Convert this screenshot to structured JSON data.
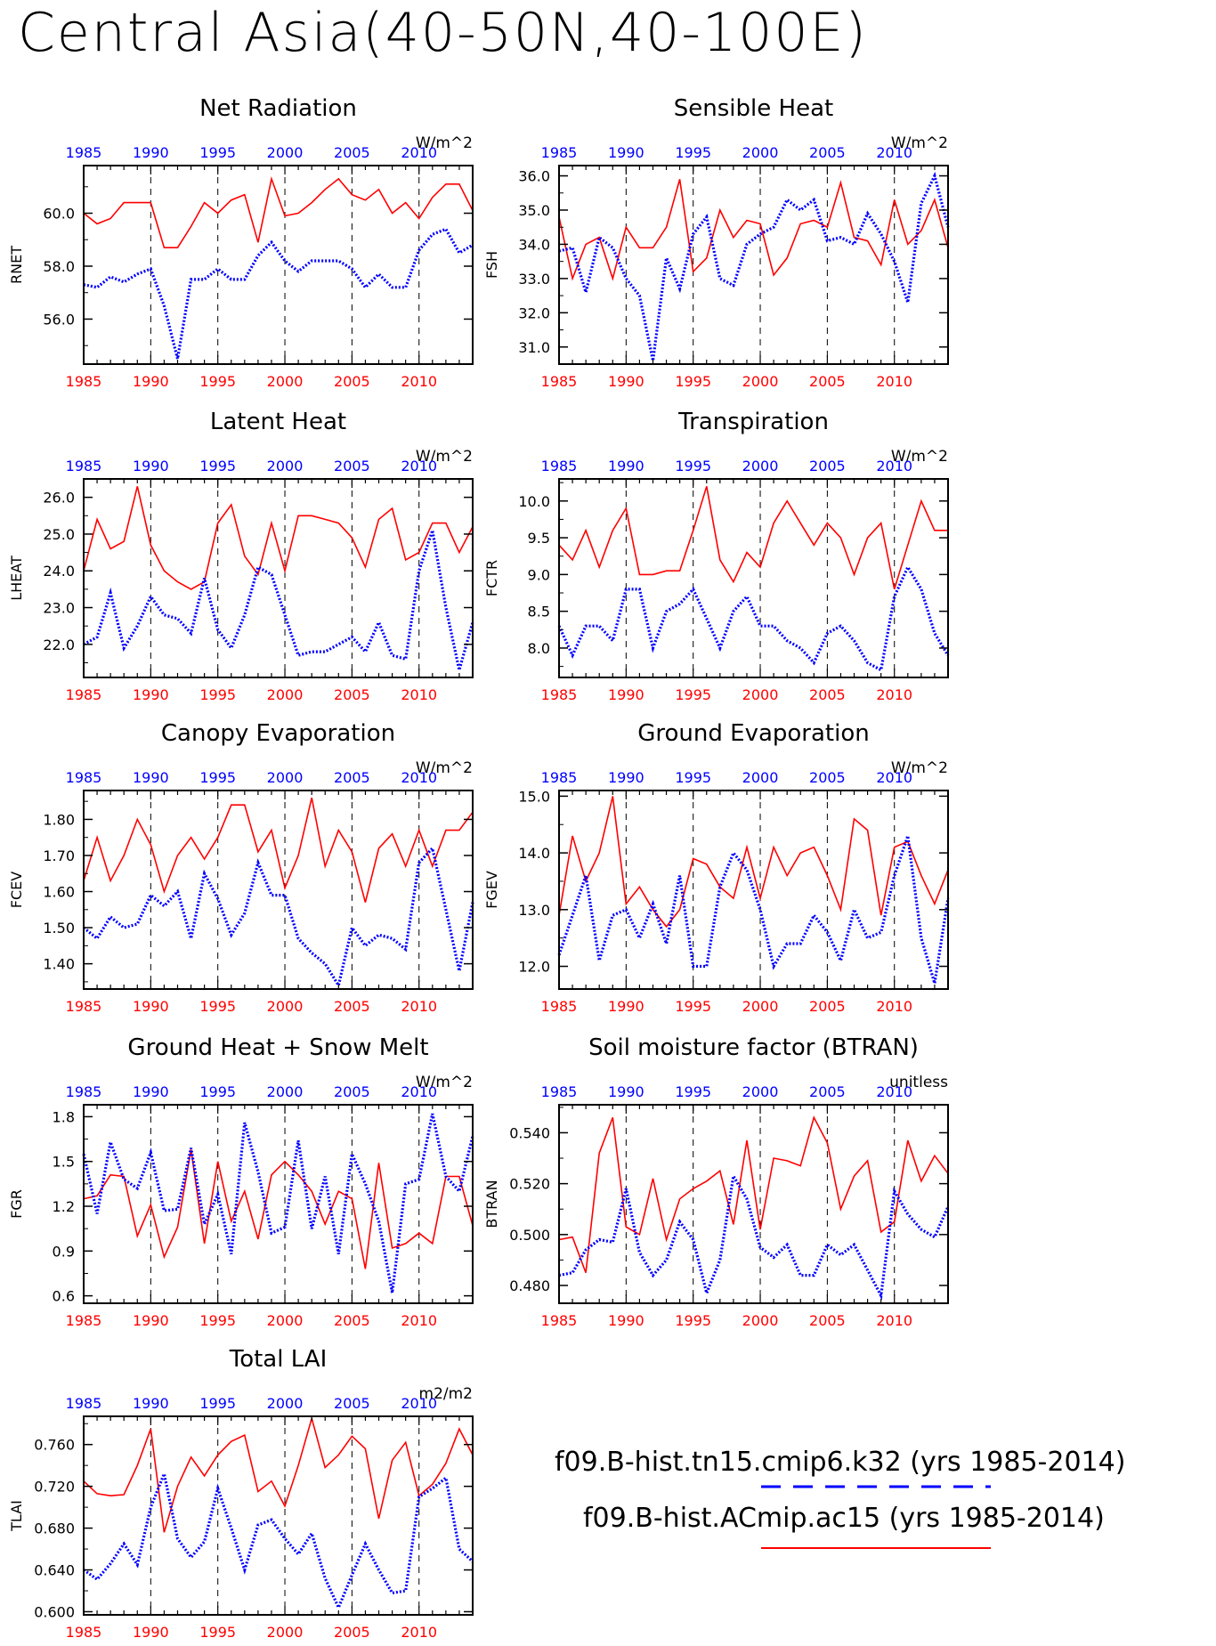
{
  "page_title": "Central Asia(40-50N,40-100E)",
  "colors": {
    "case1": "#0000ff",
    "case2": "#ff0000",
    "axis": "#000000"
  },
  "legend": {
    "case1": "f09.B-hist.tn15.cmip6.k32 (yrs 1985-2014)",
    "case2": "f09.B-hist.ACmip.ac15 (yrs 1985-2014)"
  },
  "x_axis": {
    "range": [
      1985,
      2014
    ],
    "ticks": [
      1985,
      1990,
      1995,
      2000,
      2005,
      2010
    ],
    "top_tick_labels": [
      "1985",
      "1990",
      "1995",
      "2000",
      "2005",
      "2010"
    ],
    "bottom_tick_labels": [
      "1985",
      "1990",
      "1995",
      "2000",
      "2005",
      "2010"
    ]
  },
  "chart_data": [
    {
      "type": "line",
      "title": "Net Radiation",
      "ylabel": "RNET",
      "units": "W/m^2",
      "ylim": [
        54.3,
        61.8
      ],
      "yticks": [
        56,
        58,
        60
      ],
      "ytick_labels": [
        "56.0",
        "58.0",
        "60.0"
      ],
      "x": [
        1985,
        1986,
        1987,
        1988,
        1989,
        1990,
        1991,
        1992,
        1993,
        1994,
        1995,
        1996,
        1997,
        1998,
        1999,
        2000,
        2001,
        2002,
        2003,
        2004,
        2005,
        2006,
        2007,
        2008,
        2009,
        2010,
        2011,
        2012,
        2013,
        2014
      ],
      "series": [
        {
          "values": [
            57.3,
            57.2,
            57.6,
            57.4,
            57.7,
            57.9,
            56.5,
            54.5,
            57.5,
            57.5,
            57.9,
            57.5,
            57.5,
            58.4,
            58.9,
            58.2,
            57.8,
            58.2,
            58.2,
            58.2,
            57.9,
            57.2,
            57.7,
            57.2,
            57.2,
            58.6,
            59.2,
            59.4,
            58.5,
            58.8
          ]
        },
        {
          "values": [
            60.0,
            59.6,
            59.8,
            60.4,
            60.4,
            60.4,
            58.7,
            58.7,
            59.5,
            60.4,
            60.0,
            60.5,
            60.7,
            58.9,
            61.3,
            59.9,
            60.0,
            60.4,
            60.9,
            61.3,
            60.7,
            60.5,
            60.9,
            60.0,
            60.4,
            59.8,
            60.6,
            61.1,
            61.1,
            60.1
          ]
        }
      ]
    },
    {
      "type": "line",
      "title": "Sensible Heat",
      "ylabel": "FSH",
      "units": "W/m^2",
      "ylim": [
        30.5,
        36.3
      ],
      "yticks": [
        31,
        32,
        33,
        34,
        35,
        36
      ],
      "ytick_labels": [
        "31.0",
        "32.0",
        "33.0",
        "34.0",
        "35.0",
        "36.0"
      ],
      "x": [
        1985,
        1986,
        1987,
        1988,
        1989,
        1990,
        1991,
        1992,
        1993,
        1994,
        1995,
        1996,
        1997,
        1998,
        1999,
        2000,
        2001,
        2002,
        2003,
        2004,
        2005,
        2006,
        2007,
        2008,
        2009,
        2010,
        2011,
        2012,
        2013,
        2014
      ],
      "series": [
        {
          "values": [
            33.8,
            33.9,
            32.6,
            34.2,
            33.9,
            33.0,
            32.5,
            30.6,
            33.6,
            32.7,
            34.3,
            34.8,
            33.0,
            32.8,
            34.0,
            34.3,
            34.5,
            35.3,
            35.0,
            35.3,
            34.1,
            34.2,
            34.0,
            34.9,
            34.3,
            33.5,
            32.3,
            35.2,
            36.0,
            34.5
          ]
        },
        {
          "values": [
            34.8,
            33.0,
            34.0,
            34.2,
            33.0,
            34.5,
            33.9,
            33.9,
            34.5,
            35.9,
            33.2,
            33.6,
            35.0,
            34.2,
            34.7,
            34.6,
            33.1,
            33.6,
            34.6,
            34.7,
            34.5,
            35.8,
            34.2,
            34.1,
            33.4,
            35.3,
            34.0,
            34.4,
            35.3,
            33.9
          ]
        }
      ]
    },
    {
      "type": "line",
      "title": "Latent Heat",
      "ylabel": "LHEAT",
      "units": "W/m^2",
      "ylim": [
        21.1,
        26.5
      ],
      "yticks": [
        22,
        23,
        24,
        25,
        26
      ],
      "ytick_labels": [
        "22.0",
        "23.0",
        "24.0",
        "25.0",
        "26.0"
      ],
      "x": [
        1985,
        1986,
        1987,
        1988,
        1989,
        1990,
        1991,
        1992,
        1993,
        1994,
        1995,
        1996,
        1997,
        1998,
        1999,
        2000,
        2001,
        2002,
        2003,
        2004,
        2005,
        2006,
        2007,
        2008,
        2009,
        2010,
        2011,
        2012,
        2013,
        2014
      ],
      "series": [
        {
          "values": [
            22.0,
            22.2,
            23.4,
            21.9,
            22.5,
            23.3,
            22.8,
            22.7,
            22.3,
            23.8,
            22.4,
            21.9,
            22.8,
            24.1,
            23.9,
            22.8,
            21.7,
            21.8,
            21.8,
            22.0,
            22.2,
            21.8,
            22.6,
            21.7,
            21.6,
            24.0,
            25.1,
            23.0,
            21.3,
            22.6
          ]
        },
        {
          "values": [
            24.0,
            25.4,
            24.6,
            24.8,
            26.3,
            24.7,
            24.0,
            23.7,
            23.5,
            23.7,
            25.3,
            25.8,
            24.4,
            23.9,
            25.3,
            24.0,
            25.5,
            25.5,
            25.4,
            25.3,
            24.9,
            24.1,
            25.4,
            25.7,
            24.3,
            24.5,
            25.3,
            25.3,
            24.5,
            25.2
          ]
        }
      ]
    },
    {
      "type": "line",
      "title": "Transpiration",
      "ylabel": "FCTR",
      "units": "W/m^2",
      "ylim": [
        7.6,
        10.3
      ],
      "yticks": [
        8,
        8.5,
        9,
        9.5,
        10
      ],
      "ytick_labels": [
        "8.0",
        "8.5",
        "9.0",
        "9.5",
        "10.0"
      ],
      "x": [
        1985,
        1986,
        1987,
        1988,
        1989,
        1990,
        1991,
        1992,
        1993,
        1994,
        1995,
        1996,
        1997,
        1998,
        1999,
        2000,
        2001,
        2002,
        2003,
        2004,
        2005,
        2006,
        2007,
        2008,
        2009,
        2010,
        2011,
        2012,
        2013,
        2014
      ],
      "series": [
        {
          "values": [
            8.3,
            7.9,
            8.3,
            8.3,
            8.1,
            8.8,
            8.8,
            8.0,
            8.5,
            8.6,
            8.8,
            8.4,
            8.0,
            8.5,
            8.7,
            8.3,
            8.3,
            8.1,
            8.0,
            7.8,
            8.2,
            8.3,
            8.1,
            7.8,
            7.7,
            8.7,
            9.1,
            8.8,
            8.2,
            7.9
          ]
        },
        {
          "values": [
            9.4,
            9.2,
            9.6,
            9.1,
            9.6,
            9.9,
            9.0,
            9.0,
            9.05,
            9.05,
            9.6,
            10.2,
            9.2,
            8.9,
            9.3,
            9.1,
            9.7,
            10.0,
            9.7,
            9.4,
            9.7,
            9.5,
            9.0,
            9.5,
            9.7,
            8.8,
            9.4,
            10.0,
            9.6,
            9.6
          ]
        }
      ]
    },
    {
      "type": "line",
      "title": "Canopy Evaporation",
      "ylabel": "FCEV",
      "units": "W/m^2",
      "ylim": [
        1.33,
        1.88
      ],
      "yticks": [
        1.4,
        1.5,
        1.6,
        1.7,
        1.8
      ],
      "ytick_labels": [
        "1.40",
        "1.50",
        "1.60",
        "1.70",
        "1.80"
      ],
      "x": [
        1985,
        1986,
        1987,
        1988,
        1989,
        1990,
        1991,
        1992,
        1993,
        1994,
        1995,
        1996,
        1997,
        1998,
        1999,
        2000,
        2001,
        2002,
        2003,
        2004,
        2005,
        2006,
        2007,
        2008,
        2009,
        2010,
        2011,
        2012,
        2013,
        2014
      ],
      "series": [
        {
          "values": [
            1.5,
            1.47,
            1.53,
            1.5,
            1.51,
            1.59,
            1.56,
            1.6,
            1.47,
            1.65,
            1.58,
            1.48,
            1.54,
            1.68,
            1.59,
            1.59,
            1.47,
            1.43,
            1.4,
            1.34,
            1.5,
            1.45,
            1.48,
            1.47,
            1.44,
            1.68,
            1.72,
            1.55,
            1.38,
            1.57
          ]
        },
        {
          "values": [
            1.63,
            1.75,
            1.63,
            1.7,
            1.8,
            1.73,
            1.6,
            1.7,
            1.75,
            1.69,
            1.75,
            1.84,
            1.84,
            1.71,
            1.77,
            1.61,
            1.7,
            1.86,
            1.67,
            1.77,
            1.71,
            1.57,
            1.72,
            1.76,
            1.67,
            1.77,
            1.67,
            1.77,
            1.77,
            1.82
          ]
        }
      ]
    },
    {
      "type": "line",
      "title": "Ground Evaporation",
      "ylabel": "FGEV",
      "units": "W/m^2",
      "ylim": [
        11.6,
        15.1
      ],
      "yticks": [
        12,
        13,
        14,
        15
      ],
      "ytick_labels": [
        "12.0",
        "13.0",
        "14.0",
        "15.0"
      ],
      "x": [
        1985,
        1986,
        1987,
        1988,
        1989,
        1990,
        1991,
        1992,
        1993,
        1994,
        1995,
        1996,
        1997,
        1998,
        1999,
        2000,
        2001,
        2002,
        2003,
        2004,
        2005,
        2006,
        2007,
        2008,
        2009,
        2010,
        2011,
        2012,
        2013,
        2014
      ],
      "series": [
        {
          "values": [
            12.2,
            12.9,
            13.6,
            12.1,
            12.9,
            13.0,
            12.5,
            13.1,
            12.4,
            13.6,
            12.0,
            12.0,
            13.4,
            14.0,
            13.7,
            13.0,
            12.0,
            12.4,
            12.4,
            12.9,
            12.6,
            12.1,
            13.0,
            12.5,
            12.6,
            13.6,
            14.3,
            12.5,
            11.7,
            13.2
          ]
        },
        {
          "values": [
            12.9,
            14.3,
            13.5,
            14.0,
            15.0,
            13.1,
            13.4,
            13.0,
            12.7,
            13.0,
            13.9,
            13.8,
            13.4,
            13.2,
            14.1,
            13.2,
            14.1,
            13.6,
            14.0,
            14.1,
            13.6,
            13.0,
            14.6,
            14.4,
            12.9,
            14.1,
            14.2,
            13.6,
            13.1,
            13.7
          ]
        }
      ]
    },
    {
      "type": "line",
      "title": "Ground Heat + Snow Melt",
      "ylabel": "FGR",
      "units": "W/m^2",
      "ylim": [
        0.55,
        1.88
      ],
      "yticks": [
        0.6,
        0.9,
        1.2,
        1.5,
        1.8
      ],
      "ytick_labels": [
        "0.6",
        "0.9",
        "1.2",
        "1.5",
        "1.8"
      ],
      "x": [
        1985,
        1986,
        1987,
        1988,
        1989,
        1990,
        1991,
        1992,
        1993,
        1994,
        1995,
        1996,
        1997,
        1998,
        1999,
        2000,
        2001,
        2002,
        2003,
        2004,
        2005,
        2006,
        2007,
        2008,
        2009,
        2010,
        2011,
        2012,
        2013,
        2014
      ],
      "series": [
        {
          "values": [
            1.55,
            1.15,
            1.63,
            1.38,
            1.32,
            1.56,
            1.17,
            1.18,
            1.59,
            1.08,
            1.28,
            0.88,
            1.76,
            1.43,
            1.02,
            1.06,
            1.64,
            1.05,
            1.4,
            0.88,
            1.55,
            1.35,
            1.1,
            0.62,
            1.35,
            1.38,
            1.82,
            1.4,
            1.3,
            1.67
          ]
        },
        {
          "values": [
            1.25,
            1.27,
            1.41,
            1.4,
            1.0,
            1.21,
            0.86,
            1.06,
            1.58,
            0.95,
            1.5,
            1.1,
            1.3,
            0.98,
            1.41,
            1.5,
            1.41,
            1.3,
            1.08,
            1.3,
            1.25,
            0.78,
            1.49,
            0.92,
            0.95,
            1.02,
            0.95,
            1.4,
            1.4,
            1.07
          ]
        }
      ]
    },
    {
      "type": "line",
      "title": "Soil moisture factor (BTRAN)",
      "ylabel": "BTRAN",
      "units": "unitless",
      "ylim": [
        0.473,
        0.551
      ],
      "yticks": [
        0.48,
        0.5,
        0.52,
        0.54
      ],
      "ytick_labels": [
        "0.480",
        "0.500",
        "0.520",
        "0.540"
      ],
      "x": [
        1985,
        1986,
        1987,
        1988,
        1989,
        1990,
        1991,
        1992,
        1993,
        1994,
        1995,
        1996,
        1997,
        1998,
        1999,
        2000,
        2001,
        2002,
        2003,
        2004,
        2005,
        2006,
        2007,
        2008,
        2009,
        2010,
        2011,
        2012,
        2013,
        2014
      ],
      "series": [
        {
          "values": [
            0.484,
            0.485,
            0.494,
            0.498,
            0.497,
            0.518,
            0.493,
            0.484,
            0.49,
            0.505,
            0.498,
            0.477,
            0.49,
            0.523,
            0.514,
            0.495,
            0.491,
            0.496,
            0.484,
            0.484,
            0.496,
            0.492,
            0.496,
            0.486,
            0.476,
            0.517,
            0.508,
            0.502,
            0.499,
            0.511
          ]
        },
        {
          "values": [
            0.498,
            0.499,
            0.485,
            0.532,
            0.546,
            0.503,
            0.5,
            0.522,
            0.498,
            0.514,
            0.518,
            0.521,
            0.525,
            0.504,
            0.537,
            0.502,
            0.53,
            0.529,
            0.527,
            0.546,
            0.536,
            0.51,
            0.523,
            0.529,
            0.501,
            0.505,
            0.537,
            0.521,
            0.531,
            0.524
          ]
        }
      ]
    },
    {
      "type": "line",
      "title": "Total LAI",
      "ylabel": "TLAI",
      "units": "m2/m2",
      "ylim": [
        0.597,
        0.787
      ],
      "yticks": [
        0.6,
        0.64,
        0.68,
        0.72,
        0.76
      ],
      "ytick_labels": [
        "0.600",
        "0.640",
        "0.680",
        "0.720",
        "0.760"
      ],
      "x": [
        1985,
        1986,
        1987,
        1988,
        1989,
        1990,
        1991,
        1992,
        1993,
        1994,
        1995,
        1996,
        1997,
        1998,
        1999,
        2000,
        2001,
        2002,
        2003,
        2004,
        2005,
        2006,
        2007,
        2008,
        2009,
        2010,
        2011,
        2012,
        2013,
        2014
      ],
      "series": [
        {
          "values": [
            0.64,
            0.631,
            0.646,
            0.665,
            0.645,
            0.7,
            0.732,
            0.67,
            0.652,
            0.667,
            0.718,
            0.68,
            0.64,
            0.683,
            0.688,
            0.67,
            0.655,
            0.675,
            0.632,
            0.604,
            0.635,
            0.665,
            0.64,
            0.618,
            0.62,
            0.71,
            0.718,
            0.728,
            0.66,
            0.648
          ]
        },
        {
          "values": [
            0.725,
            0.713,
            0.711,
            0.712,
            0.74,
            0.775,
            0.676,
            0.72,
            0.748,
            0.73,
            0.75,
            0.763,
            0.769,
            0.715,
            0.725,
            0.701,
            0.74,
            0.785,
            0.738,
            0.75,
            0.768,
            0.756,
            0.689,
            0.745,
            0.762,
            0.711,
            0.722,
            0.742,
            0.775,
            0.75
          ]
        }
      ]
    }
  ]
}
